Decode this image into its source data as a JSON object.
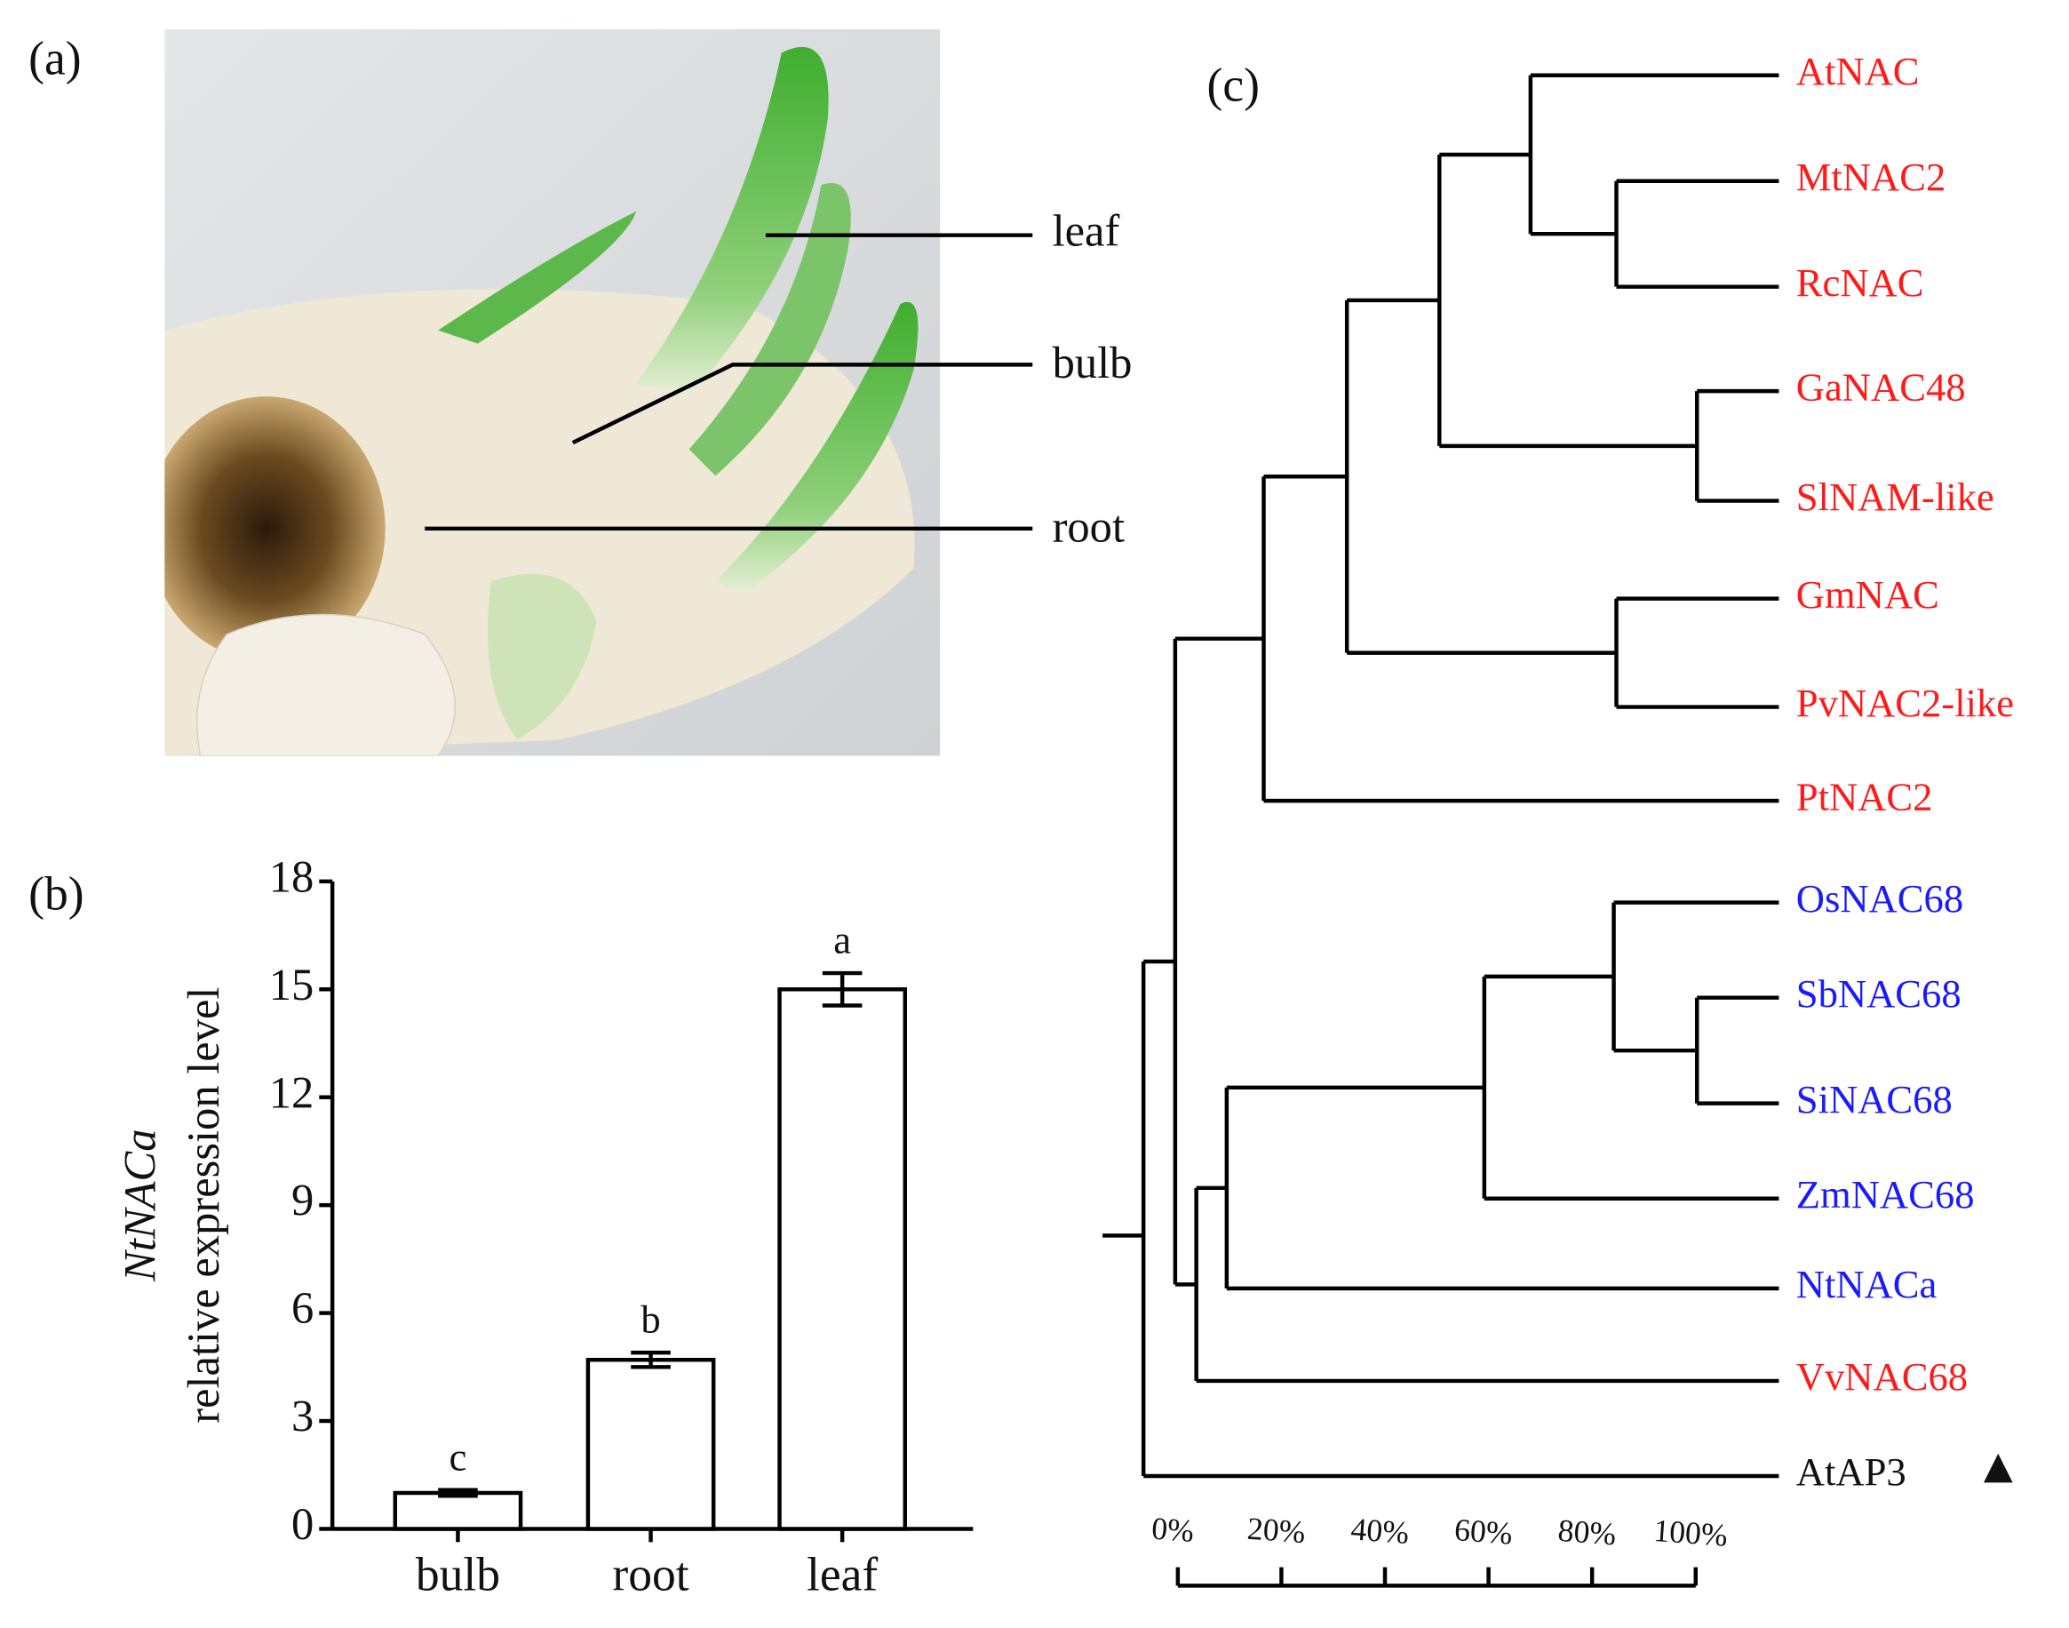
{
  "panel_a": {
    "label": "(a)",
    "annotations": [
      "leaf",
      "bulb",
      "root"
    ]
  },
  "chart_data": {
    "type": "bar",
    "label": "(b)",
    "y_label": [
      "NtNACa",
      "relative expression level"
    ],
    "categories": [
      "bulb",
      "root",
      "leaf"
    ],
    "values": [
      1,
      4.7,
      15
    ],
    "errors": [
      0.08,
      0.2,
      0.45
    ],
    "annotations": [
      "c",
      "b",
      "a"
    ],
    "color": "#ffffff",
    "ylim": [
      0,
      18
    ],
    "yticks": [
      0,
      3,
      6,
      9,
      12,
      15,
      18
    ]
  },
  "tree": {
    "label": "(c)",
    "leaves": [
      {
        "name": "AtNAC",
        "color": "#ff1a1a"
      },
      {
        "name": "MtNAC2",
        "color": "#ff1a1a"
      },
      {
        "name": "RcNAC",
        "color": "#ff1a1a"
      },
      {
        "name": "GaNAC48",
        "color": "#ff1a1a"
      },
      {
        "name": "SlNAM-like",
        "color": "#ff1a1a"
      },
      {
        "name": "GmNAC",
        "color": "#ff1a1a"
      },
      {
        "name": "PvNAC2-like",
        "color": "#ff1a1a"
      },
      {
        "name": "PtNAC2",
        "color": "#ff1a1a"
      },
      {
        "name": "OsNAC68",
        "color": "#1a1aff"
      },
      {
        "name": "SbNAC68",
        "color": "#1a1aff"
      },
      {
        "name": "SiNAC68",
        "color": "#1a1aff"
      },
      {
        "name": "ZmNAC68",
        "color": "#1a1aff"
      },
      {
        "name": "NtNACa",
        "color": "#1a1aff"
      },
      {
        "name": "VvNAC68",
        "color": "#ff1a1a"
      },
      {
        "name": "AtAP3",
        "color": "#111111"
      }
    ],
    "scale_ticks": [
      {
        "value": 0,
        "label": "0%"
      },
      {
        "value": 20,
        "label": "20%"
      },
      {
        "value": 40,
        "label": "40%"
      },
      {
        "value": 60,
        "label": "60%"
      },
      {
        "value": 80,
        "label": "80%"
      },
      {
        "value": 100,
        "label": "100%"
      }
    ]
  }
}
